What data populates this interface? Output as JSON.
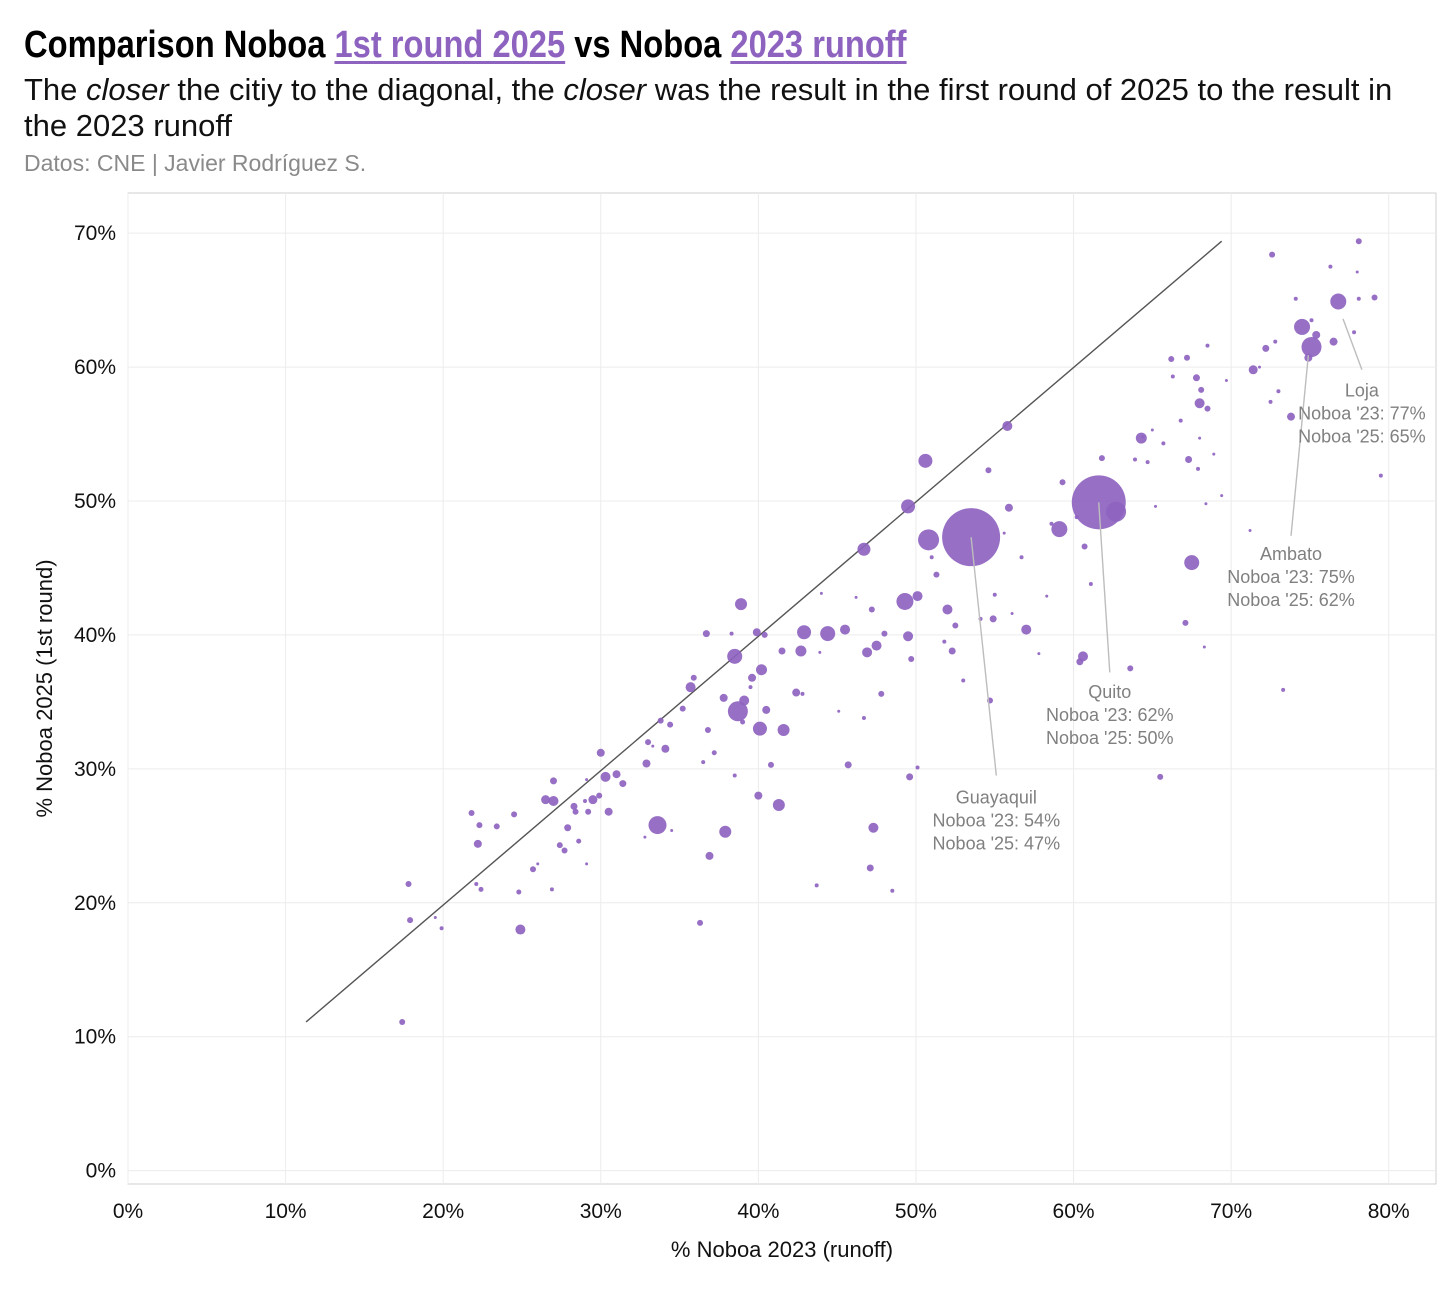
{
  "header": {
    "title_a": "Comparison Noboa ",
    "title_hl1": "1st round 2025",
    "title_b": " vs Noboa ",
    "title_hl2": "2023 runoff",
    "subtitle_a": "The ",
    "subtitle_em1": "closer",
    "subtitle_b": " the citiy to the diagonal, the ",
    "subtitle_em2": "closer",
    "subtitle_c": " was the result in the first round of 2025 to the result in the 2023 runoff",
    "source": "Datos: CNE | Javier Rodríguez S."
  },
  "colors": {
    "point": "#8e63c0",
    "highlight": "#8e63c0",
    "diagonal": "#555555",
    "grid": "#ececec",
    "annotation": "#808080"
  },
  "chart_data": {
    "type": "scatter",
    "xlabel": "% Noboa 2023 (runoff)",
    "ylabel": "% Noboa 2025 (1st round)",
    "xlim": [
      0,
      83
    ],
    "ylim": [
      -1,
      73
    ],
    "xticks": [
      0,
      10,
      20,
      30,
      40,
      50,
      60,
      70,
      80
    ],
    "yticks": [
      0,
      10,
      20,
      30,
      40,
      50,
      60,
      70
    ],
    "tick_format": "percent",
    "grid": true,
    "diagonal": {
      "from": [
        11.3,
        11.1
      ],
      "to": [
        69.4,
        69.4
      ]
    },
    "points": [
      {
        "x": 17.4,
        "y": 11.1,
        "r": 3
      },
      {
        "x": 17.8,
        "y": 21.4,
        "r": 3
      },
      {
        "x": 17.9,
        "y": 18.7,
        "r": 3
      },
      {
        "x": 19.5,
        "y": 18.9,
        "r": 1.5
      },
      {
        "x": 19.9,
        "y": 18.1,
        "r": 2
      },
      {
        "x": 21.8,
        "y": 26.7,
        "r": 3
      },
      {
        "x": 22.1,
        "y": 21.4,
        "r": 2
      },
      {
        "x": 22.2,
        "y": 24.4,
        "r": 4
      },
      {
        "x": 22.3,
        "y": 25.8,
        "r": 3
      },
      {
        "x": 22.4,
        "y": 21.0,
        "r": 2.5
      },
      {
        "x": 23.4,
        "y": 25.7,
        "r": 3
      },
      {
        "x": 24.5,
        "y": 26.6,
        "r": 3
      },
      {
        "x": 24.8,
        "y": 20.8,
        "r": 2.5
      },
      {
        "x": 24.9,
        "y": 18.0,
        "r": 5
      },
      {
        "x": 25.7,
        "y": 22.5,
        "r": 3
      },
      {
        "x": 26.0,
        "y": 22.9,
        "r": 1.5
      },
      {
        "x": 26.5,
        "y": 27.7,
        "r": 4.5
      },
      {
        "x": 27.0,
        "y": 27.6,
        "r": 5
      },
      {
        "x": 27.0,
        "y": 29.1,
        "r": 3.5
      },
      {
        "x": 26.9,
        "y": 21.0,
        "r": 2
      },
      {
        "x": 27.4,
        "y": 24.3,
        "r": 3
      },
      {
        "x": 27.7,
        "y": 23.9,
        "r": 3
      },
      {
        "x": 27.9,
        "y": 25.6,
        "r": 3.5
      },
      {
        "x": 28.3,
        "y": 27.2,
        "r": 3.5
      },
      {
        "x": 28.4,
        "y": 26.8,
        "r": 3
      },
      {
        "x": 28.6,
        "y": 24.6,
        "r": 2.5
      },
      {
        "x": 29.0,
        "y": 27.6,
        "r": 2
      },
      {
        "x": 29.2,
        "y": 26.8,
        "r": 3
      },
      {
        "x": 29.5,
        "y": 27.7,
        "r": 4.5
      },
      {
        "x": 29.9,
        "y": 28.0,
        "r": 3
      },
      {
        "x": 30.0,
        "y": 31.2,
        "r": 4
      },
      {
        "x": 30.3,
        "y": 29.4,
        "r": 5
      },
      {
        "x": 30.5,
        "y": 26.8,
        "r": 4
      },
      {
        "x": 31.0,
        "y": 29.6,
        "r": 4
      },
      {
        "x": 31.4,
        "y": 28.9,
        "r": 3.5
      },
      {
        "x": 29.1,
        "y": 29.2,
        "r": 1.5
      },
      {
        "x": 29.1,
        "y": 22.9,
        "r": 1.5
      },
      {
        "x": 32.8,
        "y": 24.9,
        "r": 1.5
      },
      {
        "x": 32.9,
        "y": 30.4,
        "r": 4
      },
      {
        "x": 33.0,
        "y": 32.0,
        "r": 3
      },
      {
        "x": 33.3,
        "y": 31.7,
        "r": 1.5
      },
      {
        "x": 33.6,
        "y": 25.8,
        "r": 9
      },
      {
        "x": 33.8,
        "y": 33.6,
        "r": 3
      },
      {
        "x": 34.1,
        "y": 31.5,
        "r": 4
      },
      {
        "x": 34.4,
        "y": 33.3,
        "r": 3
      },
      {
        "x": 34.5,
        "y": 25.4,
        "r": 1.5
      },
      {
        "x": 35.2,
        "y": 34.5,
        "r": 3
      },
      {
        "x": 35.7,
        "y": 36.1,
        "r": 5
      },
      {
        "x": 35.9,
        "y": 36.8,
        "r": 3
      },
      {
        "x": 36.3,
        "y": 18.5,
        "r": 3
      },
      {
        "x": 36.5,
        "y": 30.5,
        "r": 2
      },
      {
        "x": 36.7,
        "y": 40.1,
        "r": 3.5
      },
      {
        "x": 36.8,
        "y": 32.9,
        "r": 3
      },
      {
        "x": 36.9,
        "y": 23.5,
        "r": 4
      },
      {
        "x": 37.2,
        "y": 31.2,
        "r": 2.5
      },
      {
        "x": 37.8,
        "y": 35.3,
        "r": 4
      },
      {
        "x": 37.9,
        "y": 25.3,
        "r": 6
      },
      {
        "x": 38.3,
        "y": 40.1,
        "r": 2
      },
      {
        "x": 38.5,
        "y": 38.4,
        "r": 7.5
      },
      {
        "x": 38.5,
        "y": 29.5,
        "r": 2
      },
      {
        "x": 38.7,
        "y": 34.3,
        "r": 10
      },
      {
        "x": 38.9,
        "y": 42.3,
        "r": 6
      },
      {
        "x": 39.0,
        "y": 33.5,
        "r": 2.5
      },
      {
        "x": 39.1,
        "y": 35.1,
        "r": 5
      },
      {
        "x": 39.5,
        "y": 36.1,
        "r": 2
      },
      {
        "x": 39.6,
        "y": 36.8,
        "r": 4
      },
      {
        "x": 39.9,
        "y": 40.2,
        "r": 4
      },
      {
        "x": 40.0,
        "y": 28.0,
        "r": 4
      },
      {
        "x": 40.1,
        "y": 33.0,
        "r": 7
      },
      {
        "x": 40.2,
        "y": 37.4,
        "r": 5.5
      },
      {
        "x": 40.4,
        "y": 40.0,
        "r": 3
      },
      {
        "x": 40.5,
        "y": 34.4,
        "r": 4
      },
      {
        "x": 40.8,
        "y": 30.3,
        "r": 3
      },
      {
        "x": 41.3,
        "y": 27.3,
        "r": 6
      },
      {
        "x": 41.5,
        "y": 38.8,
        "r": 3.5
      },
      {
        "x": 41.6,
        "y": 32.9,
        "r": 6
      },
      {
        "x": 42.4,
        "y": 35.7,
        "r": 4
      },
      {
        "x": 42.7,
        "y": 38.8,
        "r": 5.5
      },
      {
        "x": 42.8,
        "y": 35.6,
        "r": 2
      },
      {
        "x": 42.9,
        "y": 40.2,
        "r": 7
      },
      {
        "x": 43.7,
        "y": 21.3,
        "r": 2
      },
      {
        "x": 43.9,
        "y": 38.7,
        "r": 1.5
      },
      {
        "x": 44.0,
        "y": 43.1,
        "r": 1.5
      },
      {
        "x": 44.4,
        "y": 40.1,
        "r": 7.5
      },
      {
        "x": 45.1,
        "y": 34.3,
        "r": 1.5
      },
      {
        "x": 45.5,
        "y": 40.4,
        "r": 5
      },
      {
        "x": 45.7,
        "y": 30.3,
        "r": 3.5
      },
      {
        "x": 46.2,
        "y": 42.8,
        "r": 1.5
      },
      {
        "x": 46.7,
        "y": 33.8,
        "r": 2
      },
      {
        "x": 46.7,
        "y": 46.4,
        "r": 6.5
      },
      {
        "x": 46.9,
        "y": 38.7,
        "r": 5
      },
      {
        "x": 47.1,
        "y": 22.6,
        "r": 3.5
      },
      {
        "x": 47.2,
        "y": 41.9,
        "r": 3
      },
      {
        "x": 47.3,
        "y": 25.6,
        "r": 5
      },
      {
        "x": 47.5,
        "y": 39.2,
        "r": 5
      },
      {
        "x": 47.8,
        "y": 35.6,
        "r": 3
      },
      {
        "x": 48.0,
        "y": 40.1,
        "r": 3
      },
      {
        "x": 48.5,
        "y": 20.9,
        "r": 2
      },
      {
        "x": 49.3,
        "y": 42.5,
        "r": 8.5
      },
      {
        "x": 49.5,
        "y": 49.6,
        "r": 7
      },
      {
        "x": 49.5,
        "y": 39.9,
        "r": 5
      },
      {
        "x": 49.6,
        "y": 29.4,
        "r": 3.5
      },
      {
        "x": 49.7,
        "y": 38.2,
        "r": 3
      },
      {
        "x": 50.1,
        "y": 30.1,
        "r": 2
      },
      {
        "x": 50.1,
        "y": 42.9,
        "r": 5
      },
      {
        "x": 50.6,
        "y": 53.0,
        "r": 7
      },
      {
        "x": 50.8,
        "y": 47.1,
        "r": 10.5
      },
      {
        "x": 51.0,
        "y": 45.8,
        "r": 2
      },
      {
        "x": 51.3,
        "y": 44.5,
        "r": 3
      },
      {
        "x": 51.8,
        "y": 39.5,
        "r": 2
      },
      {
        "x": 52.0,
        "y": 41.9,
        "r": 5
      },
      {
        "x": 52.3,
        "y": 38.8,
        "r": 3.5
      },
      {
        "x": 52.5,
        "y": 40.7,
        "r": 3
      },
      {
        "x": 53.0,
        "y": 36.6,
        "r": 2
      },
      {
        "x": 53.5,
        "y": 47.3,
        "r": 29
      },
      {
        "x": 54.1,
        "y": 41.2,
        "r": 2
      },
      {
        "x": 54.6,
        "y": 52.3,
        "r": 3
      },
      {
        "x": 54.7,
        "y": 35.1,
        "r": 3
      },
      {
        "x": 54.9,
        "y": 41.2,
        "r": 3.5
      },
      {
        "x": 55.0,
        "y": 43.0,
        "r": 2
      },
      {
        "x": 55.6,
        "y": 47.6,
        "r": 1.5
      },
      {
        "x": 55.8,
        "y": 55.6,
        "r": 5
      },
      {
        "x": 55.9,
        "y": 49.5,
        "r": 4
      },
      {
        "x": 56.1,
        "y": 41.6,
        "r": 1.5
      },
      {
        "x": 56.7,
        "y": 45.8,
        "r": 2
      },
      {
        "x": 57.0,
        "y": 40.4,
        "r": 5
      },
      {
        "x": 57.8,
        "y": 38.6,
        "r": 1.5
      },
      {
        "x": 58.3,
        "y": 42.9,
        "r": 1.5
      },
      {
        "x": 58.6,
        "y": 48.3,
        "r": 2
      },
      {
        "x": 59.1,
        "y": 47.9,
        "r": 8
      },
      {
        "x": 59.3,
        "y": 51.4,
        "r": 3
      },
      {
        "x": 60.2,
        "y": 48.8,
        "r": 2
      },
      {
        "x": 60.4,
        "y": 38.0,
        "r": 3.5
      },
      {
        "x": 60.6,
        "y": 38.4,
        "r": 5
      },
      {
        "x": 60.7,
        "y": 46.6,
        "r": 3
      },
      {
        "x": 61.1,
        "y": 43.8,
        "r": 2
      },
      {
        "x": 61.6,
        "y": 49.9,
        "r": 27
      },
      {
        "x": 61.8,
        "y": 53.2,
        "r": 3
      },
      {
        "x": 62.7,
        "y": 49.2,
        "r": 10
      },
      {
        "x": 63.6,
        "y": 37.5,
        "r": 3
      },
      {
        "x": 63.9,
        "y": 53.1,
        "r": 2
      },
      {
        "x": 64.4,
        "y": 54.8,
        "r": 1.5
      },
      {
        "x": 64.3,
        "y": 54.7,
        "r": 5.5
      },
      {
        "x": 64.7,
        "y": 52.9,
        "r": 2
      },
      {
        "x": 65.0,
        "y": 55.3,
        "r": 1.5
      },
      {
        "x": 65.5,
        "y": 29.4,
        "r": 3
      },
      {
        "x": 65.2,
        "y": 49.6,
        "r": 1.5
      },
      {
        "x": 65.7,
        "y": 54.3,
        "r": 2
      },
      {
        "x": 66.2,
        "y": 60.6,
        "r": 3
      },
      {
        "x": 66.3,
        "y": 59.3,
        "r": 2
      },
      {
        "x": 66.8,
        "y": 56.0,
        "r": 2
      },
      {
        "x": 67.1,
        "y": 40.9,
        "r": 3
      },
      {
        "x": 67.2,
        "y": 60.7,
        "r": 3
      },
      {
        "x": 67.3,
        "y": 53.1,
        "r": 3.5
      },
      {
        "x": 67.5,
        "y": 45.4,
        "r": 7.5
      },
      {
        "x": 67.8,
        "y": 59.2,
        "r": 3.5
      },
      {
        "x": 67.9,
        "y": 52.4,
        "r": 2
      },
      {
        "x": 68.0,
        "y": 57.3,
        "r": 5
      },
      {
        "x": 68.1,
        "y": 58.3,
        "r": 3
      },
      {
        "x": 68.0,
        "y": 54.7,
        "r": 1.5
      },
      {
        "x": 68.3,
        "y": 39.1,
        "r": 1.5
      },
      {
        "x": 68.5,
        "y": 56.9,
        "r": 3
      },
      {
        "x": 68.5,
        "y": 61.6,
        "r": 2
      },
      {
        "x": 68.4,
        "y": 49.8,
        "r": 1.5
      },
      {
        "x": 68.9,
        "y": 53.5,
        "r": 1.5
      },
      {
        "x": 69.4,
        "y": 50.4,
        "r": 1.5
      },
      {
        "x": 69.7,
        "y": 59.0,
        "r": 1.5
      },
      {
        "x": 71.2,
        "y": 47.8,
        "r": 1.5
      },
      {
        "x": 71.4,
        "y": 59.8,
        "r": 4.5
      },
      {
        "x": 71.8,
        "y": 60.0,
        "r": 1.5
      },
      {
        "x": 72.2,
        "y": 61.4,
        "r": 3.5
      },
      {
        "x": 72.5,
        "y": 57.4,
        "r": 2
      },
      {
        "x": 72.6,
        "y": 68.4,
        "r": 3
      },
      {
        "x": 72.8,
        "y": 61.9,
        "r": 2
      },
      {
        "x": 73.0,
        "y": 58.2,
        "r": 2
      },
      {
        "x": 73.3,
        "y": 35.9,
        "r": 2
      },
      {
        "x": 73.8,
        "y": 56.3,
        "r": 4
      },
      {
        "x": 74.1,
        "y": 65.1,
        "r": 2
      },
      {
        "x": 74.5,
        "y": 63.0,
        "r": 8
      },
      {
        "x": 74.9,
        "y": 60.7,
        "r": 4
      },
      {
        "x": 75.1,
        "y": 61.5,
        "r": 10
      },
      {
        "x": 75.4,
        "y": 62.4,
        "r": 4
      },
      {
        "x": 75.1,
        "y": 63.5,
        "r": 2
      },
      {
        "x": 76.3,
        "y": 67.5,
        "r": 2
      },
      {
        "x": 76.5,
        "y": 61.9,
        "r": 4
      },
      {
        "x": 76.8,
        "y": 64.9,
        "r": 8
      },
      {
        "x": 77.8,
        "y": 62.6,
        "r": 2
      },
      {
        "x": 78.0,
        "y": 67.1,
        "r": 1.5
      },
      {
        "x": 78.1,
        "y": 69.4,
        "r": 3
      },
      {
        "x": 78.1,
        "y": 65.1,
        "r": 2
      },
      {
        "x": 79.1,
        "y": 65.2,
        "r": 3
      },
      {
        "x": 79.5,
        "y": 51.9,
        "r": 2
      }
    ],
    "annotations": [
      {
        "name": "Guayaquil",
        "line1": "Noboa '23: 54%",
        "line2": "Noboa '25: 47%",
        "px": [
          53.5,
          47.3
        ],
        "ax": [
          55.1,
          29.5
        ],
        "lx": 55.1,
        "ly": 27.4
      },
      {
        "name": "Quito",
        "line1": "Noboa '23: 62%",
        "line2": "Noboa '25: 50%",
        "px": [
          61.6,
          49.9
        ],
        "ax": [
          62.3,
          37.2
        ],
        "lx": 62.3,
        "ly": 35.3
      },
      {
        "name": "Ambato",
        "line1": "Noboa '23: 75%",
        "line2": "Noboa '25: 62%",
        "px": [
          74.9,
          60.9
        ],
        "ax": [
          73.8,
          47.4
        ],
        "lx": 73.8,
        "ly": 45.6
      },
      {
        "name": "Loja",
        "line1": "Noboa '23: 77%",
        "line2": "Noboa '25: 65%",
        "px": [
          77.1,
          63.6
        ],
        "ax": [
          78.3,
          59.8
        ],
        "lx": 78.3,
        "ly": 57.8
      }
    ]
  }
}
